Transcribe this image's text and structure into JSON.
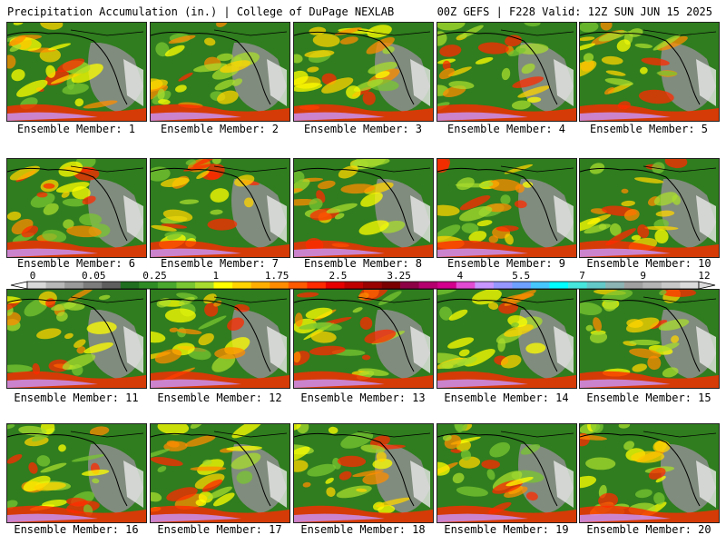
{
  "header": {
    "title": "Precipitation Accumulation (in.) | College of DuPage NEXLAB",
    "run_info": "00Z GEFS | F228 Valid: 12Z SUN JUN 15 2025"
  },
  "legend": {
    "tick_labels": [
      "0",
      "0.05",
      "0.25",
      "1",
      "1.75",
      "2.5",
      "3.25",
      "4",
      "5.5",
      "7",
      "9",
      "12"
    ],
    "colors": [
      "#d8d8d8",
      "#b8b8b8",
      "#9a9a9a",
      "#7c7c7c",
      "#5e5e5e",
      "#1f6e1f",
      "#2f8c24",
      "#4aa82e",
      "#79c632",
      "#a8dc2e",
      "#ffff00",
      "#ffd400",
      "#ffae00",
      "#ff8c00",
      "#ff5a00",
      "#ff2a00",
      "#e60000",
      "#bf0000",
      "#990000",
      "#7a0000",
      "#8c0046",
      "#b4006e",
      "#d2008c",
      "#e14bd2",
      "#c896ff",
      "#9696ff",
      "#6ea0ff",
      "#46c8ff",
      "#00ffff",
      "#46e6dc",
      "#64c8c8",
      "#8cb4b4",
      "#a0a0a0",
      "#b4b4b4",
      "#c8c8c8",
      "#dcdcdc"
    ]
  },
  "members": [
    {
      "label": "Ensemble Member: 1"
    },
    {
      "label": "Ensemble Member: 2"
    },
    {
      "label": "Ensemble Member: 3"
    },
    {
      "label": "Ensemble Member: 4"
    },
    {
      "label": "Ensemble Member: 5"
    },
    {
      "label": "Ensemble Member: 6"
    },
    {
      "label": "Ensemble Member: 7"
    },
    {
      "label": "Ensemble Member: 8"
    },
    {
      "label": "Ensemble Member: 9"
    },
    {
      "label": "Ensemble Member: 10"
    },
    {
      "label": "Ensemble Member: 11"
    },
    {
      "label": "Ensemble Member: 12"
    },
    {
      "label": "Ensemble Member: 13"
    },
    {
      "label": "Ensemble Member: 14"
    },
    {
      "label": "Ensemble Member: 15"
    },
    {
      "label": "Ensemble Member: 16"
    },
    {
      "label": "Ensemble Member: 17"
    },
    {
      "label": "Ensemble Member: 18"
    },
    {
      "label": "Ensemble Member: 19"
    },
    {
      "label": "Ensemble Member: 20"
    }
  ]
}
